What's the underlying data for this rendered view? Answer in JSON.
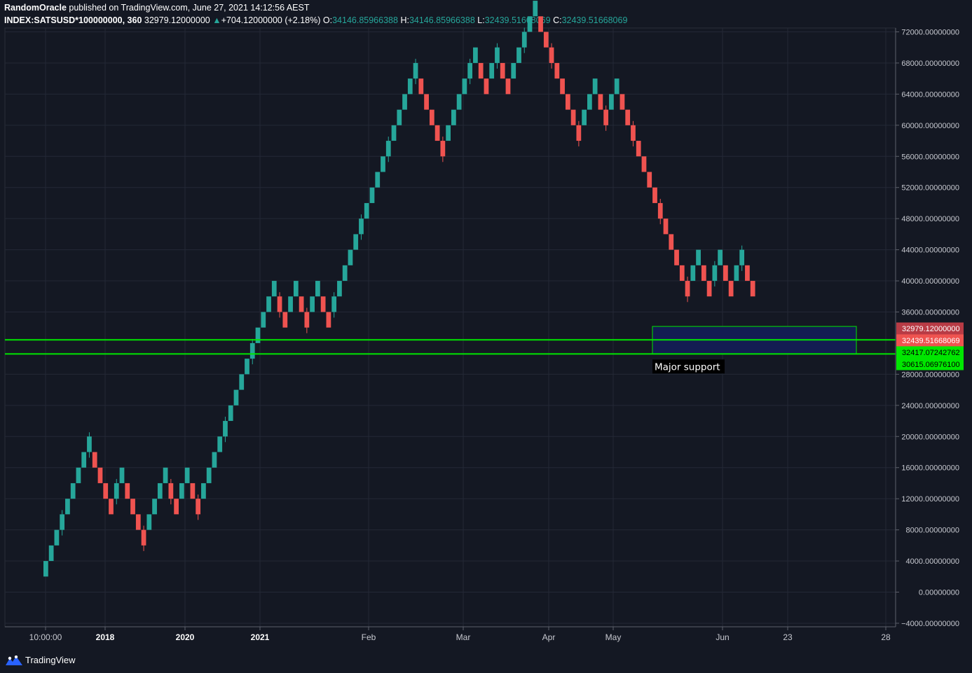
{
  "header": {
    "author": "RandomOracle",
    "published": "published on TradingView.com, June 27, 2021 14:12:56 AEST",
    "symbol": "INDEX:SATSUSD*100000000, 360",
    "last": "32979.12000000",
    "change": "+704.12000000 (+2.18%)",
    "o_label": "O:",
    "o_val": "34146.85966388",
    "h_label": "H:",
    "h_val": "34146.85966388",
    "l_label": "L:",
    "l_val": "32439.51668069",
    "c_label": "C:",
    "c_val": "32439.51668069"
  },
  "colors": {
    "up": "#26a69a",
    "down": "#ef5350",
    "support": "#00e600",
    "zone_fill": "#131c52",
    "background": "#141823"
  },
  "footer": {
    "brand": "TradingView"
  },
  "chart_data": {
    "type": "renko",
    "box_size": 2000,
    "ylim": [
      -4000,
      72000
    ],
    "y_ticks": [
      "72000.00000000",
      "68000.00000000",
      "64000.00000000",
      "60000.00000000",
      "56000.00000000",
      "52000.00000000",
      "48000.00000000",
      "44000.00000000",
      "40000.00000000",
      "36000.00000000",
      "28000.00000000",
      "24000.00000000",
      "20000.00000000",
      "16000.00000000",
      "12000.00000000",
      "8000.00000000",
      "4000.00000000",
      "0.00000000",
      "−4000.00000000"
    ],
    "x_ticks": [
      "10:00:00",
      "2018",
      "2020",
      "2021",
      "Feb",
      "Mar",
      "Apr",
      "May",
      "Jun",
      "23",
      "28"
    ],
    "price_tags": [
      {
        "label": "32979.12000000",
        "value": 32979.12,
        "color": "#b83b45"
      },
      {
        "label": "32439.51668069",
        "value": 32439.52,
        "color": "#ef5350"
      },
      {
        "label": "32417.07242762",
        "value": 32417.07,
        "color": "#00e600"
      },
      {
        "label": "30615.06976100",
        "value": 30615.07,
        "color": "#00e600"
      }
    ],
    "support_lines": [
      32417.07,
      30615.07
    ],
    "zone": {
      "from": 30615.07,
      "to": 34146.86,
      "label": "Major support"
    },
    "moves": [
      {
        "dir": "up",
        "n": 9
      },
      {
        "dir": "down",
        "n": 4
      },
      {
        "dir": "up",
        "n": 2
      },
      {
        "dir": "down",
        "n": 4
      },
      {
        "dir": "up",
        "n": 4
      },
      {
        "dir": "down",
        "n": 2
      },
      {
        "dir": "up",
        "n": 2
      },
      {
        "dir": "down",
        "n": 2
      },
      {
        "dir": "up",
        "n": 14
      },
      {
        "dir": "down",
        "n": 2
      },
      {
        "dir": "up",
        "n": 2
      },
      {
        "dir": "down",
        "n": 2
      },
      {
        "dir": "up",
        "n": 2
      },
      {
        "dir": "down",
        "n": 2
      },
      {
        "dir": "up",
        "n": 16
      },
      {
        "dir": "down",
        "n": 5
      },
      {
        "dir": "up",
        "n": 6
      },
      {
        "dir": "down",
        "n": 2
      },
      {
        "dir": "up",
        "n": 2
      },
      {
        "dir": "down",
        "n": 2
      },
      {
        "dir": "up",
        "n": 5
      },
      {
        "dir": "down",
        "n": 8
      },
      {
        "dir": "up",
        "n": 3
      },
      {
        "dir": "down",
        "n": 2
      },
      {
        "dir": "up",
        "n": 2
      },
      {
        "dir": "down",
        "n": 13
      },
      {
        "dir": "up",
        "n": 2
      },
      {
        "dir": "down",
        "n": 2
      },
      {
        "dir": "up",
        "n": 2
      },
      {
        "dir": "down",
        "n": 2
      },
      {
        "dir": "up",
        "n": 2
      },
      {
        "dir": "down",
        "n": 2
      }
    ]
  }
}
